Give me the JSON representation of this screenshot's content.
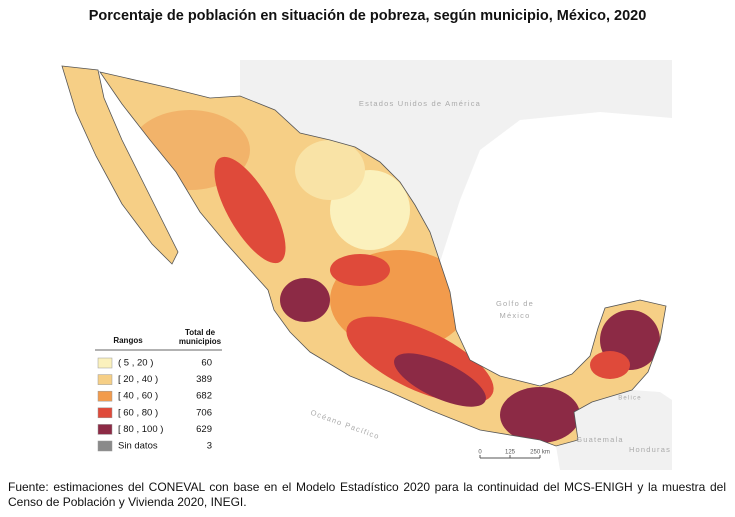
{
  "title": "Porcentaje de población en situación de pobreza, según municipio, México, 2020",
  "map": {
    "labels": {
      "usa": "Estados Unidos de América",
      "gulf": [
        "Golfo de",
        "México"
      ],
      "pacific": "Océano Pacífico",
      "belize": "Belice",
      "guatemala": "Guatemala",
      "honduras": "Honduras"
    }
  },
  "legend": {
    "header": {
      "range": "Rangos",
      "count": [
        "Total de",
        "municipios"
      ]
    },
    "items": [
      {
        "range": "( 5 , 20 )",
        "count": 60,
        "color": "#fbf1bd"
      },
      {
        "range": "[ 20 , 40 )",
        "count": 389,
        "color": "#f6cf86"
      },
      {
        "range": "[ 40 , 60 )",
        "count": 682,
        "color": "#f29b4c"
      },
      {
        "range": "[ 60 , 80 )",
        "count": 706,
        "color": "#df4a3a"
      },
      {
        "range": "[ 80 , 100 )",
        "count": 629,
        "color": "#8c2a45"
      },
      {
        "range": "Sin datos",
        "count": 3,
        "color": "#8a8a8a"
      }
    ]
  },
  "scale": {
    "labels": [
      "0",
      "125",
      "250 km"
    ]
  },
  "source": "Fuente: estimaciones del CONEVAL con base en el Modelo Estadístico 2020 para la continuidad del MCS-ENIGH y la muestra del Censo de Población y Vivienda 2020, INEGI."
}
